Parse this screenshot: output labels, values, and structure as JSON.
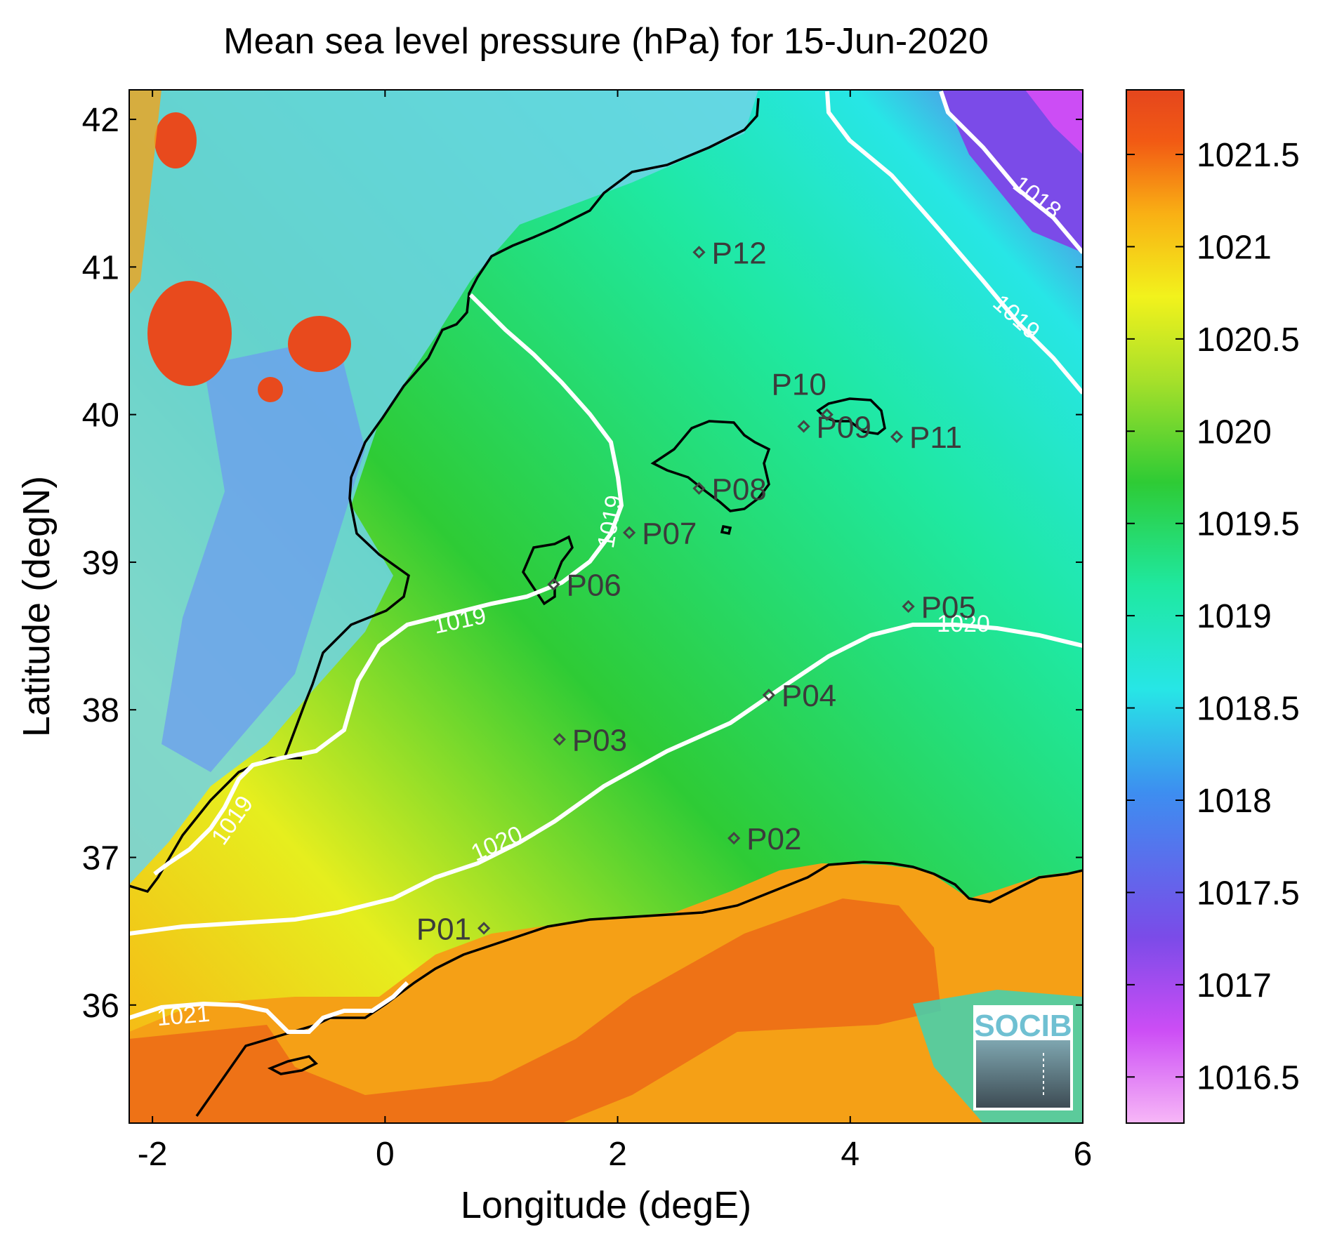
{
  "chart_data": {
    "type": "heatmap",
    "title": "Mean sea level pressure (hPa) for 15-Jun-2020",
    "xlabel": "Longitude (degE)",
    "ylabel": "Latitude (degN)",
    "xlim": [
      -2.2,
      6.0
    ],
    "ylim": [
      35.2,
      42.2
    ],
    "xticks": [
      -2,
      0,
      2,
      4,
      6
    ],
    "yticks": [
      36,
      37,
      38,
      39,
      40,
      41,
      42
    ],
    "colorbar": {
      "min": 1016.25,
      "max": 1021.85,
      "ticks": [
        1016.5,
        1017,
        1017.5,
        1018,
        1018.5,
        1019,
        1019.5,
        1020,
        1020.5,
        1021,
        1021.5
      ],
      "colors": [
        "#f7b7f7",
        "#cc4df5",
        "#7b4be8",
        "#3d8ef0",
        "#27e6e6",
        "#1fe8a0",
        "#2ecb35",
        "#a8e02a",
        "#f2f21c",
        "#f9b014",
        "#f25a14",
        "#e5461d"
      ]
    },
    "contour_levels": [
      {
        "label": "1018",
        "level": 1018
      },
      {
        "label": "1019",
        "level": 1019
      },
      {
        "label": "1020",
        "level": 1020
      },
      {
        "label": "1021",
        "level": 1021
      }
    ],
    "stations": [
      {
        "name": "P01",
        "lon": 0.85,
        "lat": 36.52
      },
      {
        "name": "P02",
        "lon": 3.0,
        "lat": 37.13
      },
      {
        "name": "P03",
        "lon": 1.5,
        "lat": 37.8
      },
      {
        "name": "P04",
        "lon": 3.3,
        "lat": 38.1
      },
      {
        "name": "P05",
        "lon": 4.5,
        "lat": 38.7
      },
      {
        "name": "P06",
        "lon": 1.45,
        "lat": 38.85
      },
      {
        "name": "P07",
        "lon": 2.1,
        "lat": 39.2
      },
      {
        "name": "P08",
        "lon": 2.7,
        "lat": 39.5
      },
      {
        "name": "P09",
        "lon": 3.6,
        "lat": 39.92
      },
      {
        "name": "P10",
        "lon": 3.8,
        "lat": 40.0
      },
      {
        "name": "P11",
        "lon": 4.4,
        "lat": 39.85
      },
      {
        "name": "P12",
        "lon": 2.7,
        "lat": 41.1
      }
    ],
    "logo": "SOCIB"
  }
}
